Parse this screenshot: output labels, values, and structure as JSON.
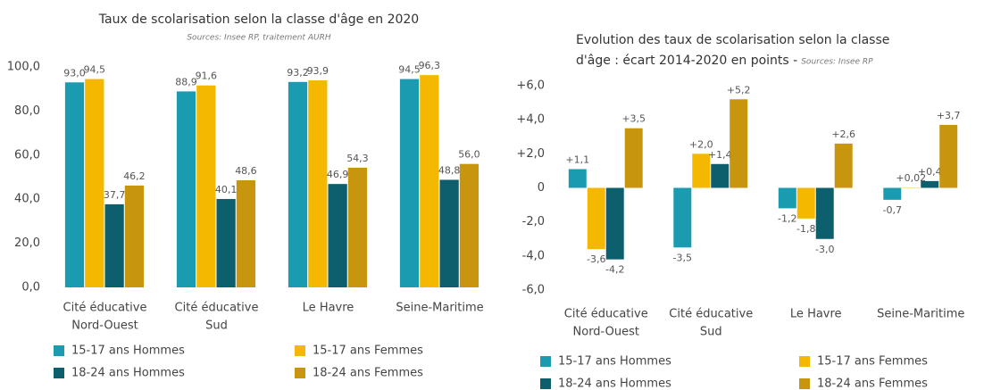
{
  "chart_data": [
    {
      "type": "bar",
      "title": [
        "Taux de scolarisation selon la classe d'âge en 2020"
      ],
      "subtitle": "Sources: Insee RP, traitement AURH",
      "categories": [
        [
          "Cité éducative",
          "Nord-Ouest"
        ],
        [
          "Cité éducative",
          "Sud"
        ],
        [
          "Le Havre"
        ],
        [
          "Seine-Maritime"
        ]
      ],
      "series": [
        {
          "name": "15-17 ans Hommes",
          "color": "#1a9bb0",
          "values": [
            93.0,
            88.9,
            93.2,
            94.5
          ],
          "value_labels": [
            "93,0",
            "88,9",
            "93,2",
            "94,5"
          ]
        },
        {
          "name": "15-17 ans Femmes",
          "color": "#f5b800",
          "values": [
            94.5,
            91.6,
            93.9,
            96.3
          ],
          "value_labels": [
            "94,5",
            "91,6",
            "93,9",
            "96,3"
          ]
        },
        {
          "name": "18-24 ans Hommes",
          "color": "#0d5f6e",
          "values": [
            37.7,
            40.1,
            46.9,
            48.8
          ],
          "value_labels": [
            "37,7",
            "40,1",
            "46,9",
            "48,8"
          ]
        },
        {
          "name": "18-24 ans Femmes",
          "color": "#c8950e",
          "values": [
            46.2,
            48.6,
            54.3,
            56.0
          ],
          "value_labels": [
            "46,2",
            "48,6",
            "54,3",
            "56,0"
          ]
        }
      ],
      "ylim": [
        0,
        100
      ],
      "yticks": [
        {
          "value": 0,
          "label": "0,0"
        },
        {
          "value": 20,
          "label": "20,0"
        },
        {
          "value": 40,
          "label": "40,0"
        },
        {
          "value": 60,
          "label": "60,0"
        },
        {
          "value": 80,
          "label": "80,0"
        },
        {
          "value": 100,
          "label": "100,0"
        }
      ]
    },
    {
      "type": "bar",
      "title": [
        "Evolution des taux de scolarisation selon la classe",
        "d'âge : écart 2014-2020 en points -"
      ],
      "subtitle": "Sources: Insee RP",
      "categories": [
        [
          "Cité éducative",
          "Nord-Ouest"
        ],
        [
          "Cité éducative",
          "Sud"
        ],
        [
          "Le Havre"
        ],
        [
          "Seine-Maritime"
        ]
      ],
      "series": [
        {
          "name": "15-17 ans Hommes",
          "color": "#1a9bb0",
          "values": [
            1.1,
            -3.5,
            -1.2,
            -0.7
          ],
          "value_labels": [
            "+1,1",
            "-3,5",
            "-1,2",
            "-0,7"
          ]
        },
        {
          "name": "15-17 ans Femmes",
          "color": "#f5b800",
          "values": [
            -3.6,
            2.0,
            -1.8,
            0.02
          ],
          "value_labels": [
            "-3,6",
            "+2,0",
            "-1,8",
            "+0,02"
          ]
        },
        {
          "name": "18-24 ans Hommes",
          "color": "#0d5f6e",
          "values": [
            -4.2,
            1.4,
            -3.0,
            0.4
          ],
          "value_labels": [
            "-4,2",
            "+1,4",
            "-3,0",
            "+0,4"
          ]
        },
        {
          "name": "18-24 ans Femmes",
          "color": "#c8950e",
          "values": [
            3.5,
            5.2,
            2.6,
            3.7
          ],
          "value_labels": [
            "+3,5",
            "+5,2",
            "+2,6",
            "+3,7"
          ]
        }
      ],
      "ylim": [
        -6,
        6
      ],
      "yticks": [
        {
          "value": -6,
          "label": "-6,0"
        },
        {
          "value": -4,
          "label": "-4,0"
        },
        {
          "value": -2,
          "label": "-2,0"
        },
        0,
        {
          "value": 2,
          "label": "+2,0"
        },
        {
          "value": 4,
          "label": "+4,0"
        },
        {
          "value": 6,
          "label": "+6,0"
        }
      ]
    }
  ]
}
